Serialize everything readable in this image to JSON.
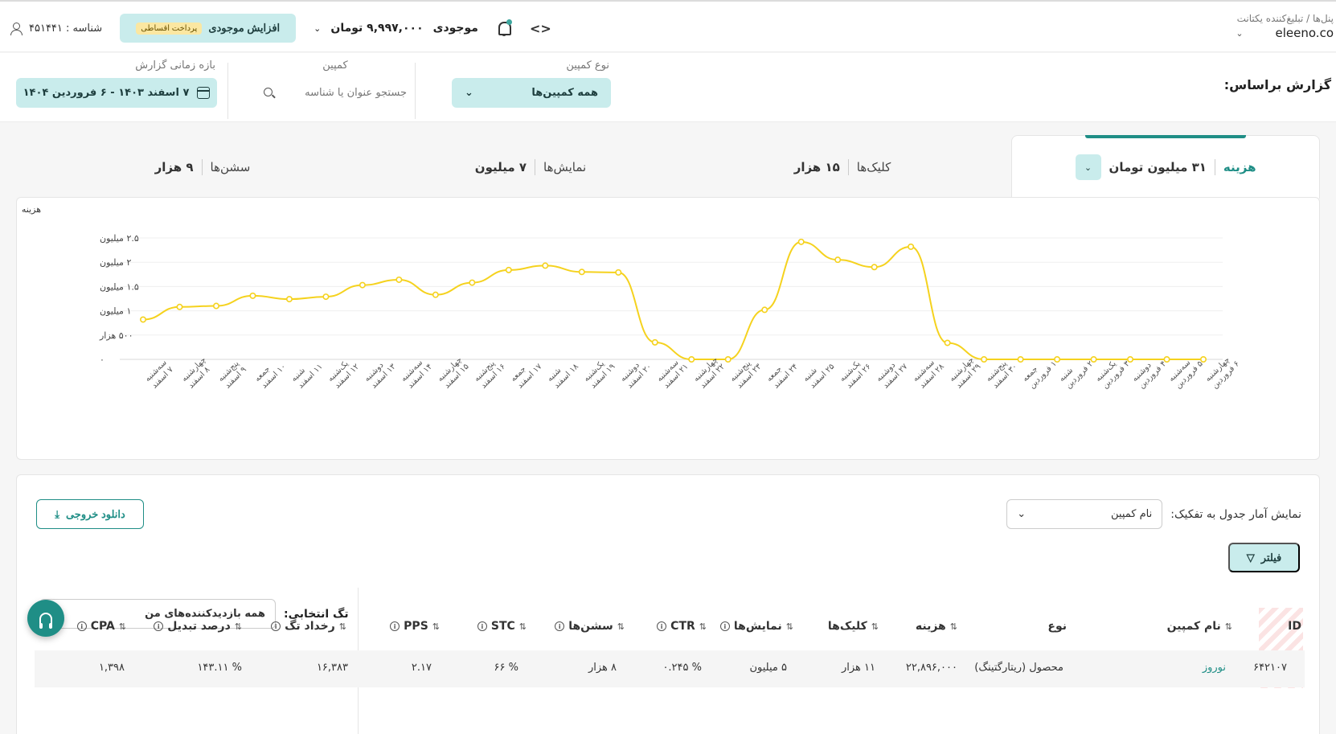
{
  "header": {
    "breadcrumb": "پنل‌ها / تبلیغ‌کننده یکتانت",
    "account_name": "eleeno.co",
    "balance_label": "موجودی",
    "balance_value": "۹,۹۹۷,۰۰۰ تومان",
    "charge_label": "افزایش موجودی",
    "charge_badge": "پرداخت اقساطی",
    "user_id": "شناسه : ۴۵۱۴۴۱"
  },
  "filters": {
    "report_label": "گزارش براساس:",
    "type_label": "نوع کمپین",
    "type_value": "همه کمپین‌ها",
    "campaign_label": "کمپین",
    "campaign_placeholder": "جستجو عنوان یا شناسه",
    "date_label": "بازه زمانی گزارش",
    "date_value": "۷ اسفند ۱۴۰۳ - ۶ فروردین ۱۴۰۴"
  },
  "metrics": [
    {
      "name": "هزینه",
      "value": "۳۱ میلیون تومان",
      "active": true
    },
    {
      "name": "کلیک‌ها",
      "value": "۱۵ هزار",
      "active": false
    },
    {
      "name": "نمایش‌ها",
      "value": "۷ میلیون",
      "active": false
    },
    {
      "name": "سشن‌ها",
      "value": "۹ هزار",
      "active": false
    }
  ],
  "chart_data": {
    "type": "line",
    "ylabel": "هزینه",
    "y_ticks": [
      {
        "value": 0,
        "label": "۰"
      },
      {
        "value": 500000,
        "label": "۵۰۰ هزار"
      },
      {
        "value": 1000000,
        "label": "۱ میلیون"
      },
      {
        "value": 1500000,
        "label": "۱.۵ میلیون"
      },
      {
        "value": 2000000,
        "label": "۲ میلیون"
      },
      {
        "value": 2500000,
        "label": "۲.۵ میلیون"
      }
    ],
    "ylim": [
      0,
      2500000
    ],
    "grid": true,
    "color": "#f5d21e",
    "categories": [
      [
        "سه‌شنبه",
        "۷ اسفند"
      ],
      [
        "چهارشنبه",
        "۸ اسفند"
      ],
      [
        "پنج‌شنبه",
        "۹ اسفند"
      ],
      [
        "جمعه",
        "۱۰ اسفند"
      ],
      [
        "شنبه",
        "۱۱ اسفند"
      ],
      [
        "یک‌شنبه",
        "۱۲ اسفند"
      ],
      [
        "دوشنبه",
        "۱۳ اسفند"
      ],
      [
        "سه‌شنبه",
        "۱۴ اسفند"
      ],
      [
        "چهارشنبه",
        "۱۵ اسفند"
      ],
      [
        "پنج‌شنبه",
        "۱۶ اسفند"
      ],
      [
        "جمعه",
        "۱۷ اسفند"
      ],
      [
        "شنبه",
        "۱۸ اسفند"
      ],
      [
        "یک‌شنبه",
        "۱۹ اسفند"
      ],
      [
        "دوشنبه",
        "۲۰ اسفند"
      ],
      [
        "سه‌شنبه",
        "۲۱ اسفند"
      ],
      [
        "چهارشنبه",
        "۲۲ اسفند"
      ],
      [
        "پنج‌شنبه",
        "۲۳ اسفند"
      ],
      [
        "جمعه",
        "۲۴ اسفند"
      ],
      [
        "شنبه",
        "۲۵ اسفند"
      ],
      [
        "یک‌شنبه",
        "۲۶ اسفند"
      ],
      [
        "دوشنبه",
        "۲۷ اسفند"
      ],
      [
        "سه‌شنبه",
        "۲۸ اسفند"
      ],
      [
        "چهارشنبه",
        "۲۹ اسفند"
      ],
      [
        "پنج‌شنبه",
        "۳۰ اسفند"
      ],
      [
        "جمعه",
        "۱ فروردین"
      ],
      [
        "شنبه",
        "۲ فروردین"
      ],
      [
        "یک‌شنبه",
        "۳ فروردین"
      ],
      [
        "دوشنبه",
        "۴ فروردین"
      ],
      [
        "سه‌شنبه",
        "۵ فروردین"
      ],
      [
        "چهارشنبه",
        "۶ فروردین"
      ]
    ],
    "values": [
      820000,
      1080000,
      1100000,
      1310000,
      1240000,
      1290000,
      1530000,
      1640000,
      1330000,
      1580000,
      1840000,
      1930000,
      1800000,
      1790000,
      350000,
      0,
      0,
      1020000,
      2420000,
      2050000,
      1900000,
      2320000,
      340000,
      0,
      0,
      0,
      0,
      0,
      0,
      0
    ]
  },
  "table": {
    "breakdown_label": "نمایش آمار جدول به تفکیک:",
    "breakdown_value": "نام کمپین",
    "download_label": "دانلود خروجی",
    "filter_label": "فیلتر",
    "tag_label": "تگ انتخابی:",
    "tag_value": "همه بازدیدکننده‌های من",
    "columns": {
      "id": "ID",
      "name": "نام کمپین",
      "type": "نوع",
      "cost": "هزینه",
      "clicks": "کلیک‌ها",
      "impressions": "نمایش‌ها",
      "ctr": "CTR",
      "sessions": "سشن‌ها",
      "stc": "STC",
      "pps": "PPS",
      "events": "رخداد تگ",
      "conversion": "درصد تبدیل",
      "cpa": "CPA"
    },
    "rows": [
      {
        "id": "۶۴۲۱۰۷",
        "name": "نوروز",
        "type": "محصول (ریتارگتینگ)",
        "cost": "۲۲,۸۹۶,۰۰۰",
        "clicks": "۱۱ هزار",
        "impressions": "۵ میلیون",
        "ctr": "% ۰.۲۴۵",
        "sessions": "۸ هزار",
        "stc": "% ۶۶",
        "pps": "۲.۱۷",
        "events": "۱۶,۳۸۳",
        "conversion": "% ۱۴۳.۱۱",
        "cpa": "۱,۳۹۸"
      }
    ]
  }
}
